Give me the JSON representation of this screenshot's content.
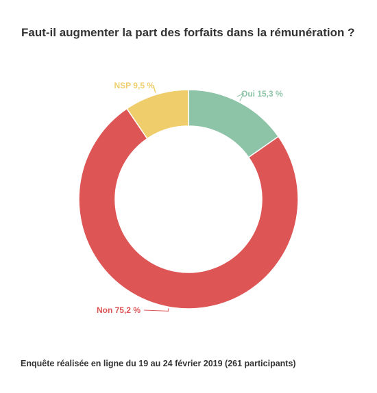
{
  "title": "Faut-il augmenter la part des forfaits dans la rémunération ?",
  "footer": "Enquête réalisée en ligne du 19 au 24 février 2019  (261 participants)",
  "chart_data": {
    "type": "pie",
    "variant": "donut",
    "categories": [
      "Oui",
      "Non",
      "NSP"
    ],
    "values": [
      15.3,
      75.2,
      9.5
    ],
    "labels": [
      "Oui 15,3 %",
      "Non 75,2 %",
      "NSP 9,5 %"
    ],
    "colors": [
      "#8dc4a7",
      "#de5556",
      "#eecd6a"
    ],
    "legend": "none"
  }
}
